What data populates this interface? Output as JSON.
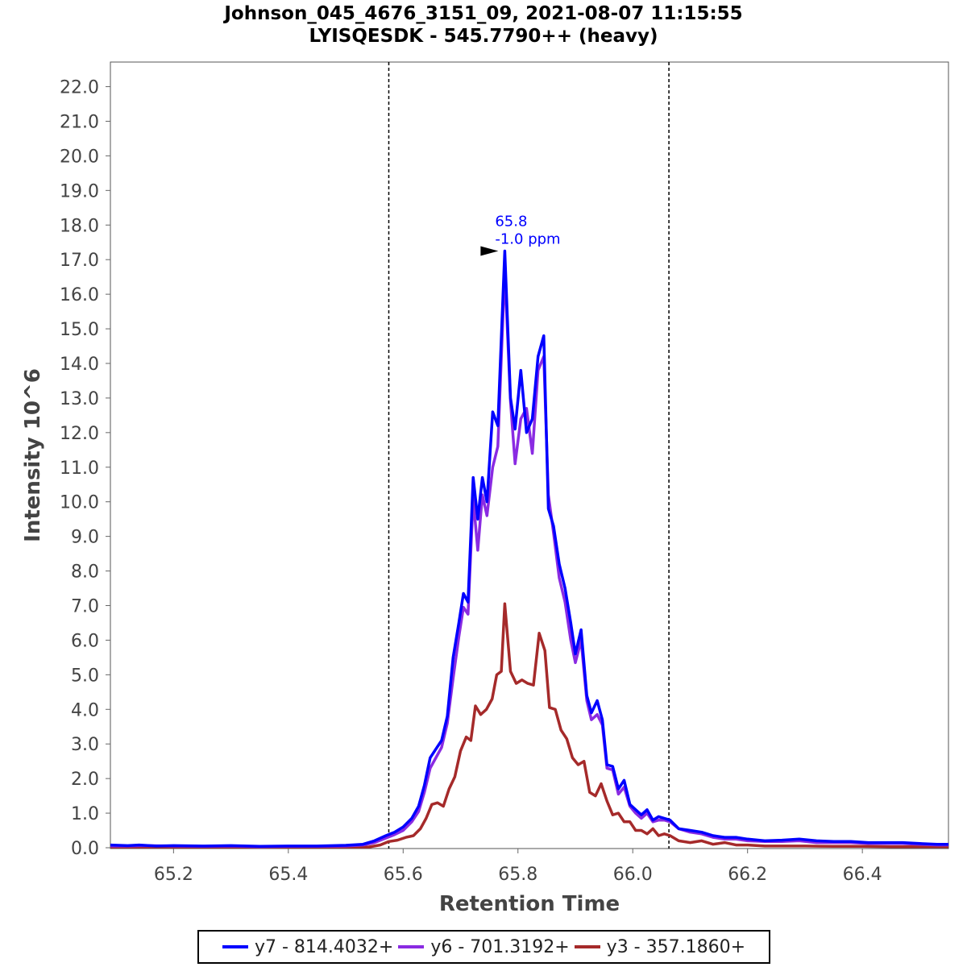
{
  "chart_data": {
    "type": "line",
    "title": "Johnson_045_4676_3151_09, 2021-08-07 11:15:55",
    "subtitle": "LYISQESDK - 545.7790++ (heavy)",
    "xlabel": "Retention Time",
    "ylabel": "Intensity 10^6",
    "xlim": [
      65.09,
      66.55
    ],
    "ylim": [
      0,
      23.0
    ],
    "x_ticks": [
      "65.2",
      "65.4",
      "65.6",
      "65.8",
      "66.0",
      "66.2",
      "66.4"
    ],
    "y_ticks": [
      "0.0",
      "1.0",
      "2.0",
      "3.0",
      "4.0",
      "5.0",
      "6.0",
      "7.0",
      "8.0",
      "9.0",
      "10.0",
      "11.0",
      "12.0",
      "13.0",
      "14.0",
      "15.0",
      "16.0",
      "17.0",
      "18.0",
      "19.0",
      "20.0",
      "21.0",
      "22.0"
    ],
    "vlines": [
      65.575,
      66.063
    ],
    "annotation": {
      "x": 65.777,
      "y": 17.25,
      "line1": "65.8",
      "line2": "-1.0 ppm",
      "color": "#0000ff"
    },
    "legend_position": "bottom",
    "series": [
      {
        "name": "y7 - 814.4032+",
        "color": "#0000ff",
        "points": [
          [
            65.09,
            0.08
          ],
          [
            65.12,
            0.06
          ],
          [
            65.14,
            0.08
          ],
          [
            65.17,
            0.05
          ],
          [
            65.2,
            0.06
          ],
          [
            65.25,
            0.05
          ],
          [
            65.3,
            0.06
          ],
          [
            65.35,
            0.04
          ],
          [
            65.4,
            0.05
          ],
          [
            65.45,
            0.05
          ],
          [
            65.5,
            0.07
          ],
          [
            65.53,
            0.1
          ],
          [
            65.55,
            0.2
          ],
          [
            65.57,
            0.35
          ],
          [
            65.585,
            0.45
          ],
          [
            65.6,
            0.6
          ],
          [
            65.615,
            0.85
          ],
          [
            65.627,
            1.2
          ],
          [
            65.637,
            1.8
          ],
          [
            65.647,
            2.6
          ],
          [
            65.657,
            2.85
          ],
          [
            65.667,
            3.1
          ],
          [
            65.677,
            3.8
          ],
          [
            65.687,
            5.5
          ],
          [
            65.697,
            6.5
          ],
          [
            65.705,
            7.35
          ],
          [
            65.713,
            7.1
          ],
          [
            65.722,
            10.7
          ],
          [
            65.73,
            9.5
          ],
          [
            65.738,
            10.7
          ],
          [
            65.746,
            10.0
          ],
          [
            65.756,
            12.6
          ],
          [
            65.765,
            12.2
          ],
          [
            65.777,
            17.25
          ],
          [
            65.787,
            13.0
          ],
          [
            65.795,
            12.1
          ],
          [
            65.805,
            13.8
          ],
          [
            65.815,
            12.0
          ],
          [
            65.825,
            12.4
          ],
          [
            65.835,
            14.2
          ],
          [
            65.845,
            14.8
          ],
          [
            65.853,
            9.8
          ],
          [
            65.862,
            9.3
          ],
          [
            65.872,
            8.2
          ],
          [
            65.882,
            7.5
          ],
          [
            65.892,
            6.5
          ],
          [
            65.9,
            5.6
          ],
          [
            65.91,
            6.3
          ],
          [
            65.92,
            4.4
          ],
          [
            65.928,
            3.9
          ],
          [
            65.938,
            4.25
          ],
          [
            65.947,
            3.7
          ],
          [
            65.955,
            2.4
          ],
          [
            65.965,
            2.35
          ],
          [
            65.975,
            1.7
          ],
          [
            65.985,
            1.95
          ],
          [
            65.995,
            1.25
          ],
          [
            66.005,
            1.1
          ],
          [
            66.015,
            0.95
          ],
          [
            66.025,
            1.1
          ],
          [
            66.035,
            0.8
          ],
          [
            66.045,
            0.9
          ],
          [
            66.055,
            0.85
          ],
          [
            66.065,
            0.8
          ],
          [
            66.08,
            0.55
          ],
          [
            66.1,
            0.5
          ],
          [
            66.12,
            0.45
          ],
          [
            66.14,
            0.35
          ],
          [
            66.16,
            0.3
          ],
          [
            66.18,
            0.3
          ],
          [
            66.2,
            0.25
          ],
          [
            66.23,
            0.2
          ],
          [
            66.26,
            0.22
          ],
          [
            66.29,
            0.25
          ],
          [
            66.32,
            0.2
          ],
          [
            66.35,
            0.18
          ],
          [
            66.38,
            0.18
          ],
          [
            66.41,
            0.15
          ],
          [
            66.44,
            0.15
          ],
          [
            66.47,
            0.15
          ],
          [
            66.5,
            0.12
          ],
          [
            66.53,
            0.1
          ],
          [
            66.55,
            0.1
          ]
        ]
      },
      {
        "name": "y6 - 701.3192+",
        "color": "#8a2be2",
        "points": [
          [
            65.09,
            0.05
          ],
          [
            65.12,
            0.05
          ],
          [
            65.15,
            0.06
          ],
          [
            65.2,
            0.05
          ],
          [
            65.25,
            0.04
          ],
          [
            65.3,
            0.05
          ],
          [
            65.35,
            0.03
          ],
          [
            65.4,
            0.04
          ],
          [
            65.45,
            0.04
          ],
          [
            65.5,
            0.05
          ],
          [
            65.53,
            0.08
          ],
          [
            65.55,
            0.15
          ],
          [
            65.57,
            0.28
          ],
          [
            65.585,
            0.38
          ],
          [
            65.6,
            0.5
          ],
          [
            65.615,
            0.75
          ],
          [
            65.627,
            1.05
          ],
          [
            65.637,
            1.6
          ],
          [
            65.647,
            2.3
          ],
          [
            65.657,
            2.6
          ],
          [
            65.667,
            2.9
          ],
          [
            65.677,
            3.6
          ],
          [
            65.687,
            4.9
          ],
          [
            65.697,
            6.1
          ],
          [
            65.705,
            6.95
          ],
          [
            65.713,
            6.75
          ],
          [
            65.722,
            10.1
          ],
          [
            65.73,
            8.6
          ],
          [
            65.738,
            10.2
          ],
          [
            65.746,
            9.6
          ],
          [
            65.756,
            11.0
          ],
          [
            65.765,
            11.6
          ],
          [
            65.777,
            16.7
          ],
          [
            65.787,
            12.9
          ],
          [
            65.795,
            11.1
          ],
          [
            65.805,
            12.4
          ],
          [
            65.815,
            12.7
          ],
          [
            65.825,
            11.4
          ],
          [
            65.835,
            13.8
          ],
          [
            65.845,
            14.2
          ],
          [
            65.853,
            10.2
          ],
          [
            65.862,
            9.1
          ],
          [
            65.872,
            7.8
          ],
          [
            65.882,
            7.1
          ],
          [
            65.892,
            6.0
          ],
          [
            65.9,
            5.35
          ],
          [
            65.91,
            6.0
          ],
          [
            65.92,
            4.25
          ],
          [
            65.928,
            3.7
          ],
          [
            65.938,
            3.85
          ],
          [
            65.947,
            3.55
          ],
          [
            65.955,
            2.3
          ],
          [
            65.965,
            2.25
          ],
          [
            65.975,
            1.55
          ],
          [
            65.985,
            1.75
          ],
          [
            65.995,
            1.2
          ],
          [
            66.005,
            1.0
          ],
          [
            66.015,
            0.85
          ],
          [
            66.025,
            1.0
          ],
          [
            66.035,
            0.75
          ],
          [
            66.045,
            0.8
          ],
          [
            66.055,
            0.8
          ],
          [
            66.065,
            0.75
          ],
          [
            66.08,
            0.55
          ],
          [
            66.1,
            0.45
          ],
          [
            66.12,
            0.4
          ],
          [
            66.14,
            0.3
          ],
          [
            66.16,
            0.25
          ],
          [
            66.18,
            0.25
          ],
          [
            66.2,
            0.2
          ],
          [
            66.23,
            0.18
          ],
          [
            66.26,
            0.18
          ],
          [
            66.29,
            0.2
          ],
          [
            66.32,
            0.15
          ],
          [
            66.35,
            0.15
          ],
          [
            66.38,
            0.15
          ],
          [
            66.41,
            0.12
          ],
          [
            66.44,
            0.12
          ],
          [
            66.47,
            0.12
          ],
          [
            66.5,
            0.1
          ],
          [
            66.53,
            0.08
          ],
          [
            66.55,
            0.08
          ]
        ]
      },
      {
        "name": "y3 - 357.1860+",
        "color": "#a52a2a",
        "points": [
          [
            65.09,
            0.02
          ],
          [
            65.15,
            0.02
          ],
          [
            65.2,
            0.02
          ],
          [
            65.3,
            0.02
          ],
          [
            65.4,
            0.02
          ],
          [
            65.5,
            0.02
          ],
          [
            65.54,
            0.02
          ],
          [
            65.56,
            0.08
          ],
          [
            65.575,
            0.18
          ],
          [
            65.59,
            0.22
          ],
          [
            65.605,
            0.3
          ],
          [
            65.618,
            0.35
          ],
          [
            65.63,
            0.55
          ],
          [
            65.64,
            0.85
          ],
          [
            65.65,
            1.25
          ],
          [
            65.66,
            1.3
          ],
          [
            65.67,
            1.2
          ],
          [
            65.68,
            1.7
          ],
          [
            65.69,
            2.05
          ],
          [
            65.7,
            2.8
          ],
          [
            65.71,
            3.2
          ],
          [
            65.718,
            3.1
          ],
          [
            65.726,
            4.1
          ],
          [
            65.735,
            3.85
          ],
          [
            65.745,
            4.0
          ],
          [
            65.755,
            4.3
          ],
          [
            65.763,
            5.0
          ],
          [
            65.771,
            5.1
          ],
          [
            65.777,
            7.05
          ],
          [
            65.787,
            5.1
          ],
          [
            65.797,
            4.75
          ],
          [
            65.807,
            4.85
          ],
          [
            65.817,
            4.75
          ],
          [
            65.827,
            4.7
          ],
          [
            65.837,
            6.2
          ],
          [
            65.847,
            5.7
          ],
          [
            65.855,
            4.05
          ],
          [
            65.865,
            4.0
          ],
          [
            65.875,
            3.4
          ],
          [
            65.885,
            3.15
          ],
          [
            65.895,
            2.6
          ],
          [
            65.905,
            2.4
          ],
          [
            65.915,
            2.5
          ],
          [
            65.925,
            1.6
          ],
          [
            65.935,
            1.5
          ],
          [
            65.945,
            1.85
          ],
          [
            65.955,
            1.35
          ],
          [
            65.965,
            0.95
          ],
          [
            65.975,
            1.0
          ],
          [
            65.985,
            0.75
          ],
          [
            65.995,
            0.75
          ],
          [
            66.005,
            0.5
          ],
          [
            66.015,
            0.5
          ],
          [
            66.025,
            0.4
          ],
          [
            66.035,
            0.55
          ],
          [
            66.045,
            0.35
          ],
          [
            66.055,
            0.4
          ],
          [
            66.065,
            0.35
          ],
          [
            66.08,
            0.2
          ],
          [
            66.1,
            0.15
          ],
          [
            66.12,
            0.2
          ],
          [
            66.14,
            0.1
          ],
          [
            66.16,
            0.15
          ],
          [
            66.18,
            0.08
          ],
          [
            66.2,
            0.08
          ],
          [
            66.23,
            0.05
          ],
          [
            66.26,
            0.05
          ],
          [
            66.3,
            0.05
          ],
          [
            66.35,
            0.04
          ],
          [
            66.4,
            0.04
          ],
          [
            66.45,
            0.03
          ],
          [
            66.5,
            0.03
          ],
          [
            66.55,
            0.03
          ]
        ]
      }
    ]
  }
}
